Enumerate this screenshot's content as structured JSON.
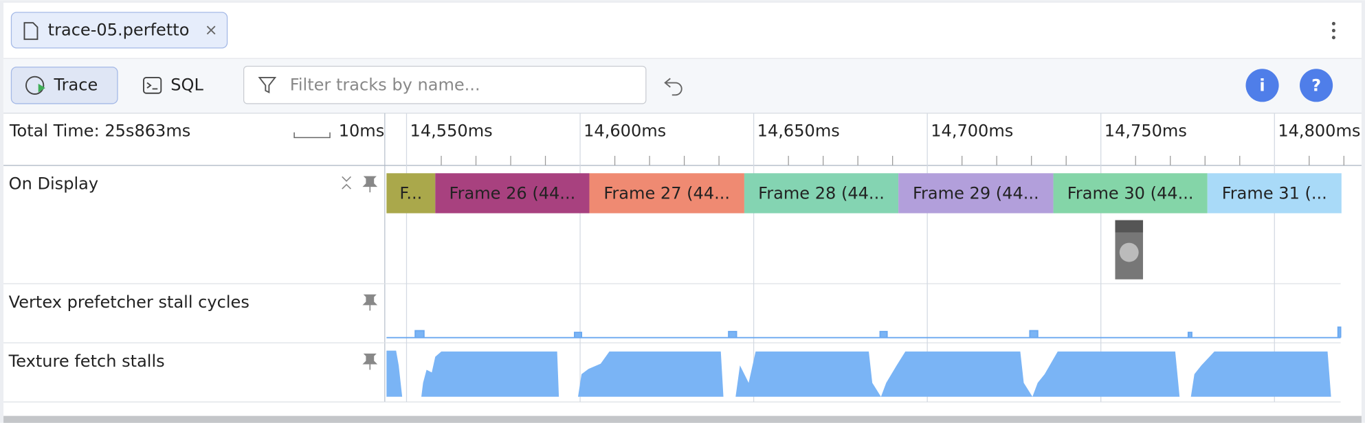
{
  "tab": {
    "title": "trace-05.perfetto"
  },
  "toolbar": {
    "trace": "Trace",
    "sql": "SQL",
    "filter_placeholder": "Filter tracks by name...",
    "info": "i",
    "help": "?"
  },
  "timeline": {
    "total_time": "Total Time: 25s863ms",
    "scale_label": "10ms",
    "ticks": [
      "14,550ms",
      "14,600ms",
      "14,650ms",
      "14,700ms",
      "14,750ms",
      "14,800ms"
    ]
  },
  "tracks": [
    "On Display",
    "Vertex prefetcher stall cycles",
    "Texture fetch stalls"
  ],
  "frames": [
    {
      "label": "F...",
      "color": "#aaa84b"
    },
    {
      "label": "Frame 26 (44...",
      "color": "#a8417f"
    },
    {
      "label": "Frame 27 (44...",
      "color": "#ef8a72"
    },
    {
      "label": "Frame 28 (44...",
      "color": "#84d4b2"
    },
    {
      "label": "Frame 29 (44...",
      "color": "#b29fdb"
    },
    {
      "label": "Frame 30 (44...",
      "color": "#84d5a8"
    },
    {
      "label": "Frame 31 (...",
      "color": "#a9daf8"
    }
  ]
}
